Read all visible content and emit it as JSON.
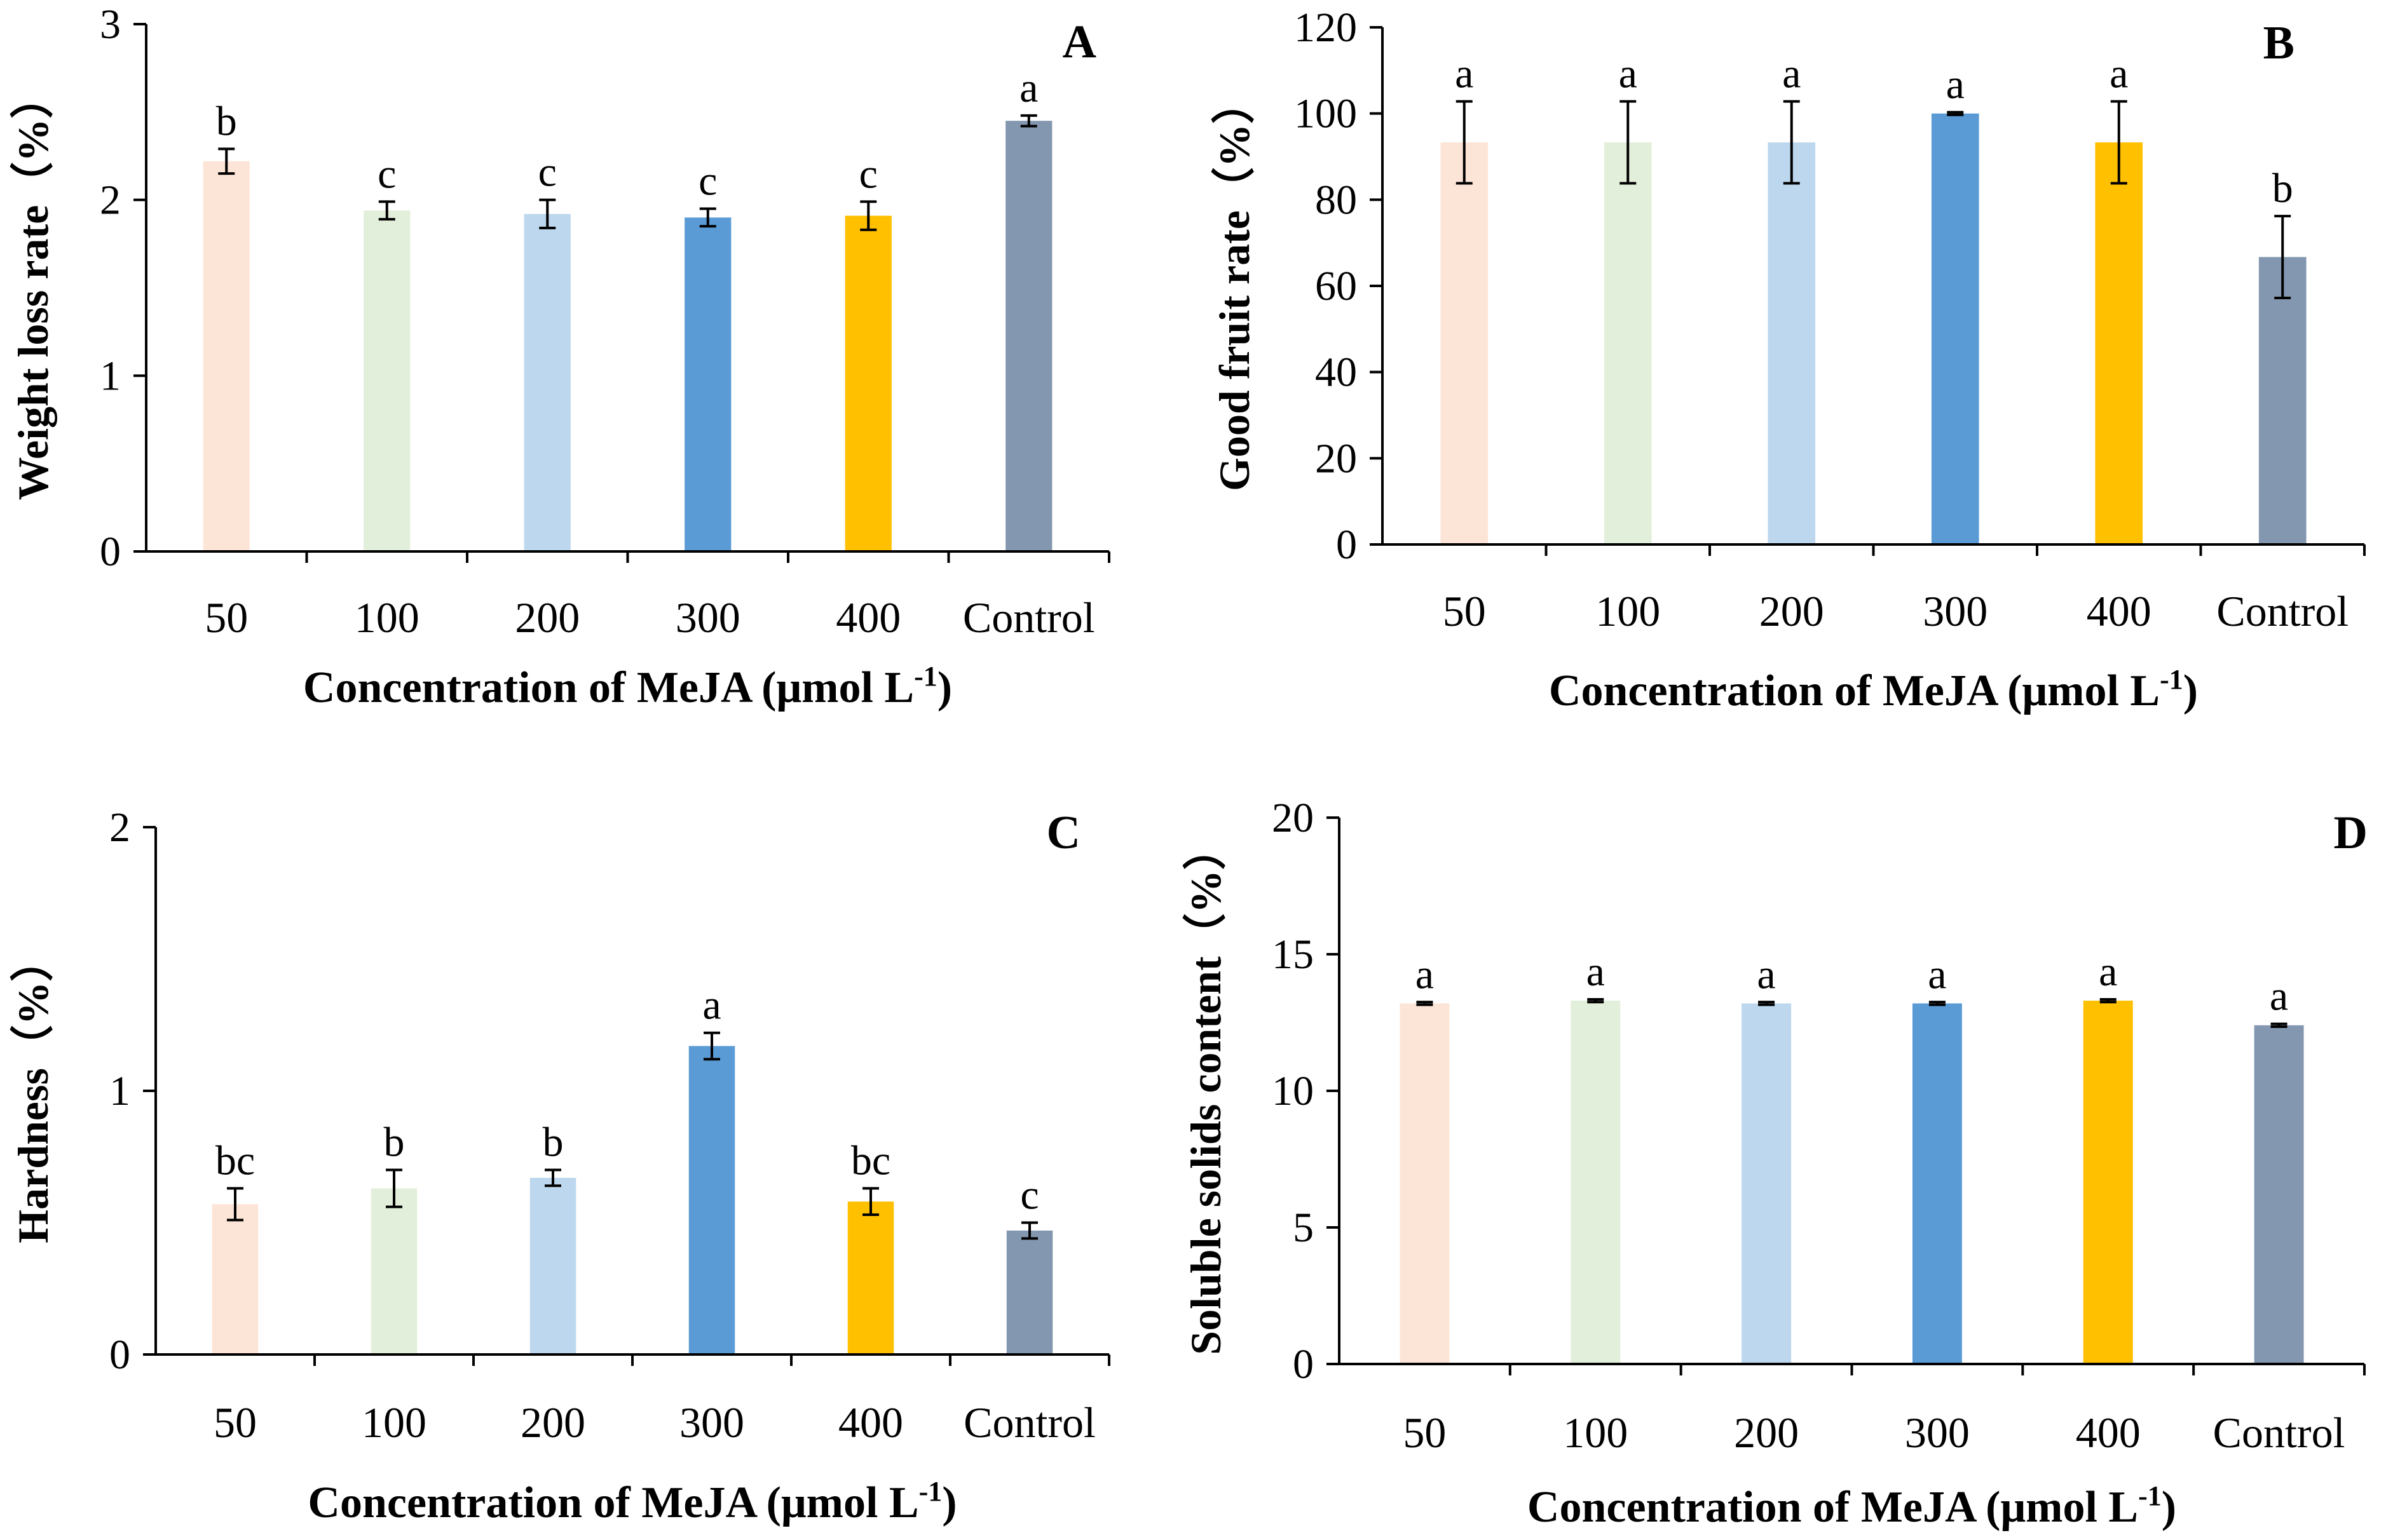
{
  "figure_id": "MeJA_postharvest_figure",
  "chart_data": [
    {
      "panel": "A",
      "type": "bar",
      "categories": [
        "50",
        "100",
        "200",
        "300",
        "400",
        "Control"
      ],
      "values": [
        2.22,
        1.94,
        1.92,
        1.9,
        1.91,
        2.45
      ],
      "errors": [
        0.07,
        0.05,
        0.08,
        0.05,
        0.08,
        0.03
      ],
      "significance": [
        "b",
        "c",
        "c",
        "c",
        "c",
        "a"
      ],
      "colors": [
        "#FCE4D6",
        "#E2EFDA",
        "#BDD7EE",
        "#5B9BD5",
        "#FFC000",
        "#8497B0"
      ],
      "ylabel": "Weight loss rate（%）",
      "xlabel": "Concentration of  MeJA (μmol L",
      "xlabel_sup": "-1",
      "xlabel_end": ")",
      "ylim": [
        0,
        3
      ],
      "yticks": [
        0,
        1,
        2,
        3
      ]
    },
    {
      "panel": "B",
      "type": "bar",
      "categories": [
        "50",
        "100",
        "200",
        "300",
        "400",
        "Control"
      ],
      "values": [
        93.3,
        93.3,
        93.3,
        100,
        93.3,
        66.7
      ],
      "errors": [
        9.5,
        9.5,
        9.5,
        0.3,
        9.5,
        9.5
      ],
      "significance": [
        "a",
        "a",
        "a",
        "a",
        "a",
        "b"
      ],
      "colors": [
        "#FCE4D6",
        "#E2EFDA",
        "#BDD7EE",
        "#5B9BD5",
        "#FFC000",
        "#8497B0"
      ],
      "ylabel": "Good fruit rate（%）",
      "xlabel": "Concentration of MeJA (μmol L",
      "xlabel_sup": "-1",
      "xlabel_end": ")",
      "ylim": [
        0,
        120
      ],
      "yticks": [
        0,
        20,
        40,
        60,
        80,
        100,
        120
      ]
    },
    {
      "panel": "C",
      "type": "bar",
      "categories": [
        "50",
        "100",
        "200",
        "300",
        "400",
        "Control"
      ],
      "values": [
        0.57,
        0.63,
        0.67,
        1.17,
        0.58,
        0.47
      ],
      "errors": [
        0.06,
        0.07,
        0.03,
        0.05,
        0.05,
        0.03
      ],
      "significance": [
        "bc",
        "b",
        "b",
        "a",
        "bc",
        "c"
      ],
      "colors": [
        "#FCE4D6",
        "#E2EFDA",
        "#BDD7EE",
        "#5B9BD5",
        "#FFC000",
        "#8497B0"
      ],
      "ylabel": "Hardness（%）",
      "xlabel": "Concentration of  MeJA (μmol L",
      "xlabel_sup": "-1",
      "xlabel_end": ")",
      "ylim": [
        0,
        2
      ],
      "yticks": [
        0,
        1,
        2
      ]
    },
    {
      "panel": "D",
      "type": "bar",
      "categories": [
        "50",
        "100",
        "200",
        "300",
        "400",
        "Control"
      ],
      "values": [
        13.2,
        13.3,
        13.2,
        13.2,
        13.3,
        12.4
      ],
      "errors": [
        0.05,
        0.05,
        0.05,
        0.05,
        0.05,
        0.05
      ],
      "significance": [
        "a",
        "a",
        "a",
        "a",
        "a",
        "a"
      ],
      "colors": [
        "#FCE4D6",
        "#E2EFDA",
        "#BDD7EE",
        "#5B9BD5",
        "#FFC000",
        "#8497B0"
      ],
      "ylabel": "Soluble solids content（%）",
      "xlabel": "Concentration of  MeJA (μmol L",
      "xlabel_sup": "-1",
      "xlabel_end": ")",
      "ylim": [
        0,
        20
      ],
      "yticks": [
        0,
        5,
        10,
        15,
        20
      ]
    }
  ]
}
